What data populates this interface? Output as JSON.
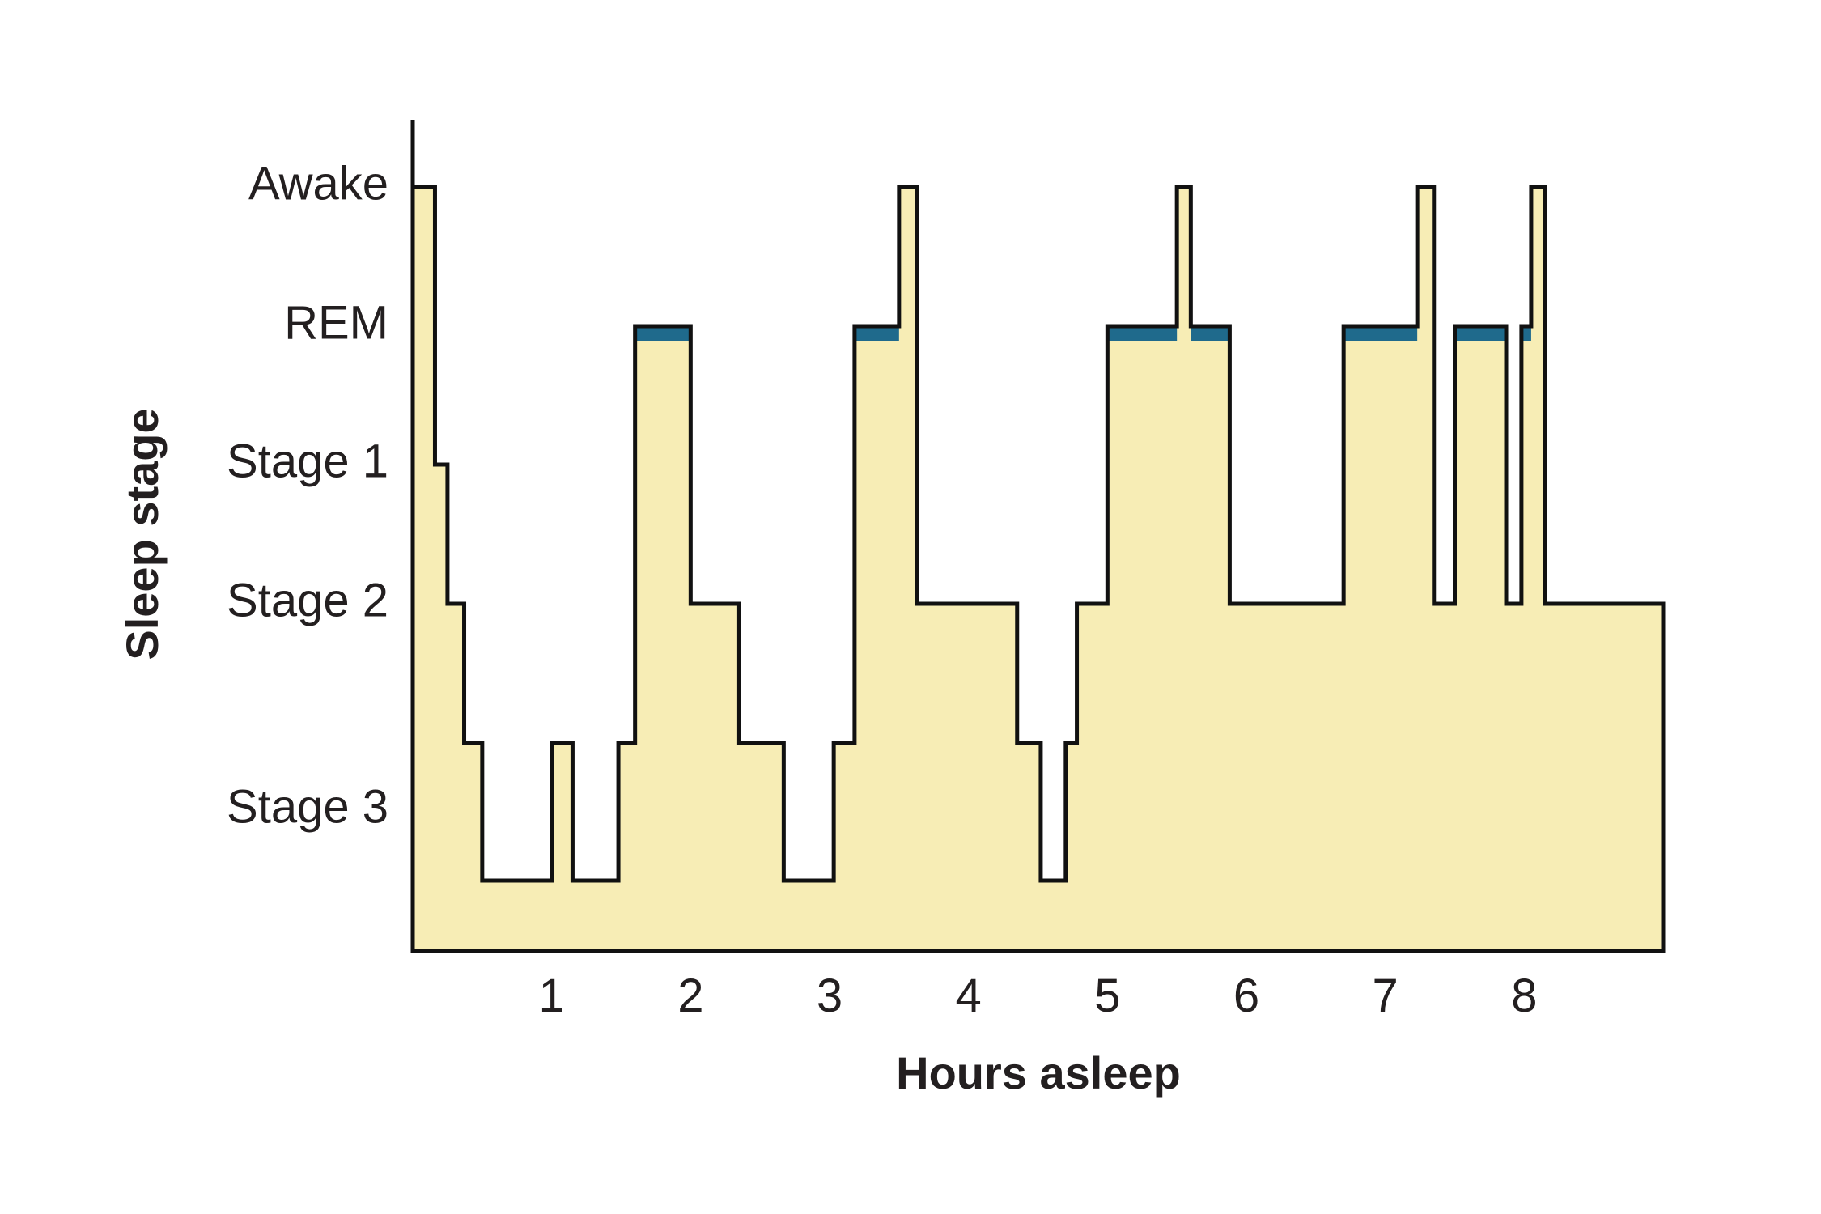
{
  "chart_data": {
    "type": "area",
    "xlabel": "Hours asleep",
    "ylabel": "Sleep stage",
    "xlim": [
      0,
      9
    ],
    "x_ticks": [
      "1",
      "2",
      "3",
      "4",
      "5",
      "6",
      "7",
      "8"
    ],
    "y_levels": [
      {
        "label": "Awake",
        "level": 5
      },
      {
        "label": "REM",
        "level": 4,
        "color": "#2a86ad"
      },
      {
        "label": "Stage 1",
        "level": 3
      },
      {
        "label": "Stage 2",
        "level": 2
      },
      {
        "label": "Stage 3",
        "level": 0.5
      }
    ],
    "colors": {
      "fill": "#f7edb5",
      "outline": "#111111",
      "rem_band": "#1f6a8c",
      "rem_text": "#2a86ad",
      "text": "#231f20"
    },
    "hypnogram": [
      {
        "t": 0.0,
        "stage": 5
      },
      {
        "t": 0.16,
        "stage": 3
      },
      {
        "t": 0.25,
        "stage": 2
      },
      {
        "t": 0.37,
        "stage": 1
      },
      {
        "t": 0.5,
        "stage": 0
      },
      {
        "t": 1.0,
        "stage": 1
      },
      {
        "t": 1.15,
        "stage": 0
      },
      {
        "t": 1.48,
        "stage": 1
      },
      {
        "t": 1.6,
        "stage": 4
      },
      {
        "t": 2.0,
        "stage": 2
      },
      {
        "t": 2.35,
        "stage": 1
      },
      {
        "t": 2.67,
        "stage": 0
      },
      {
        "t": 3.03,
        "stage": 1
      },
      {
        "t": 3.18,
        "stage": 4
      },
      {
        "t": 3.5,
        "stage": 5
      },
      {
        "t": 3.63,
        "stage": 2
      },
      {
        "t": 4.35,
        "stage": 1
      },
      {
        "t": 4.52,
        "stage": 0
      },
      {
        "t": 4.7,
        "stage": 1
      },
      {
        "t": 4.78,
        "stage": 2
      },
      {
        "t": 5.0,
        "stage": 4
      },
      {
        "t": 5.5,
        "stage": 5
      },
      {
        "t": 5.6,
        "stage": 4
      },
      {
        "t": 5.88,
        "stage": 2
      },
      {
        "t": 6.7,
        "stage": 4
      },
      {
        "t": 7.23,
        "stage": 5
      },
      {
        "t": 7.35,
        "stage": 2
      },
      {
        "t": 7.5,
        "stage": 4
      },
      {
        "t": 7.87,
        "stage": 2
      },
      {
        "t": 7.98,
        "stage": 4
      },
      {
        "t": 8.05,
        "stage": 5
      },
      {
        "t": 8.15,
        "stage": 2
      },
      {
        "t": 9.0,
        "stage": 2
      }
    ]
  }
}
